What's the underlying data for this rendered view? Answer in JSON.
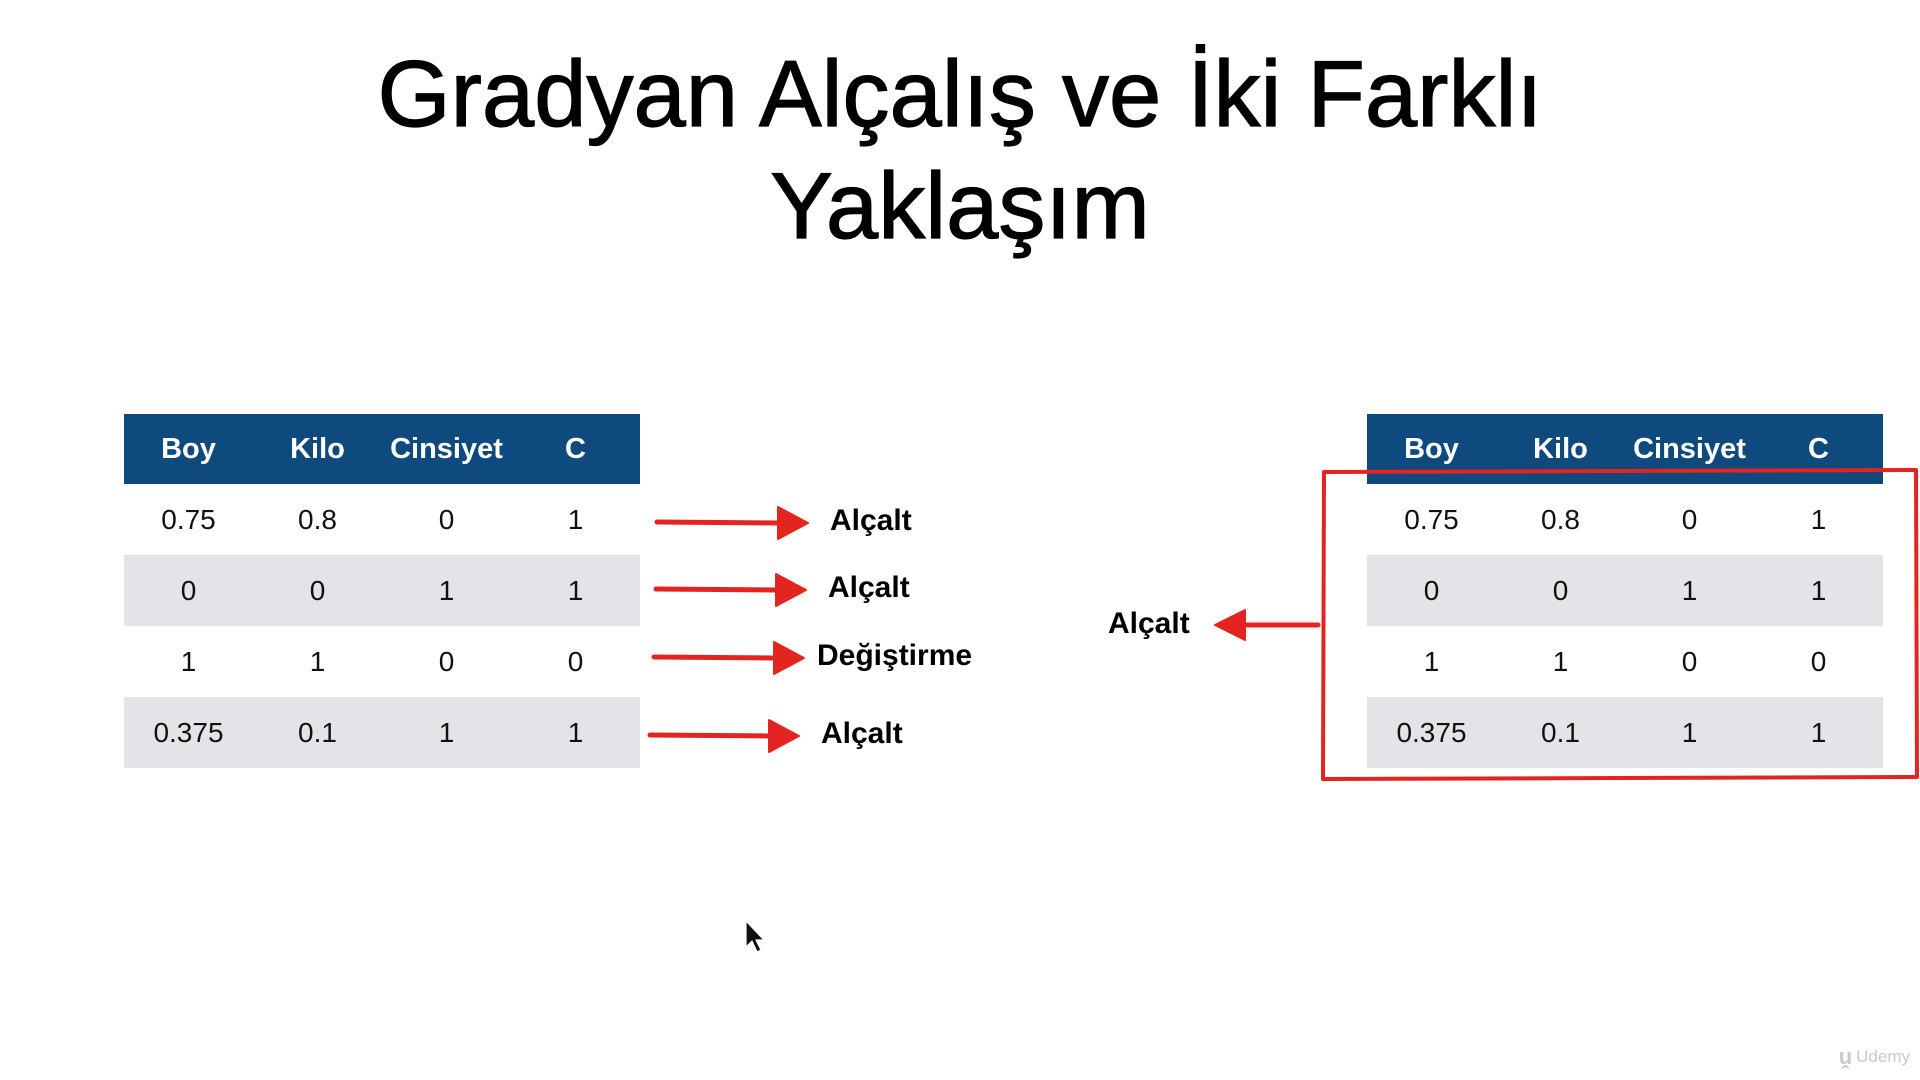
{
  "title": {
    "line1": "Gradyan Alçalış ve İki Farklı",
    "line2": "Yaklaşım"
  },
  "table": {
    "headers": [
      "Boy",
      "Kilo",
      "Cinsiyet",
      "C"
    ],
    "rows": [
      [
        "0.75",
        "0.8",
        "0",
        "1"
      ],
      [
        "0",
        "0",
        "1",
        "1"
      ],
      [
        "1",
        "1",
        "0",
        "0"
      ],
      [
        "0.375",
        "0.1",
        "1",
        "1"
      ]
    ]
  },
  "left_annotations": [
    "Alçalt",
    "Alçalt",
    "Değiştirme",
    "Alçalt"
  ],
  "right_annotation": "Alçalt",
  "watermark": "Udemy",
  "colors": {
    "header_bg": "#0e4a7e",
    "shaded_row": "#e3e4e8",
    "annotation_red": "#e42420"
  }
}
